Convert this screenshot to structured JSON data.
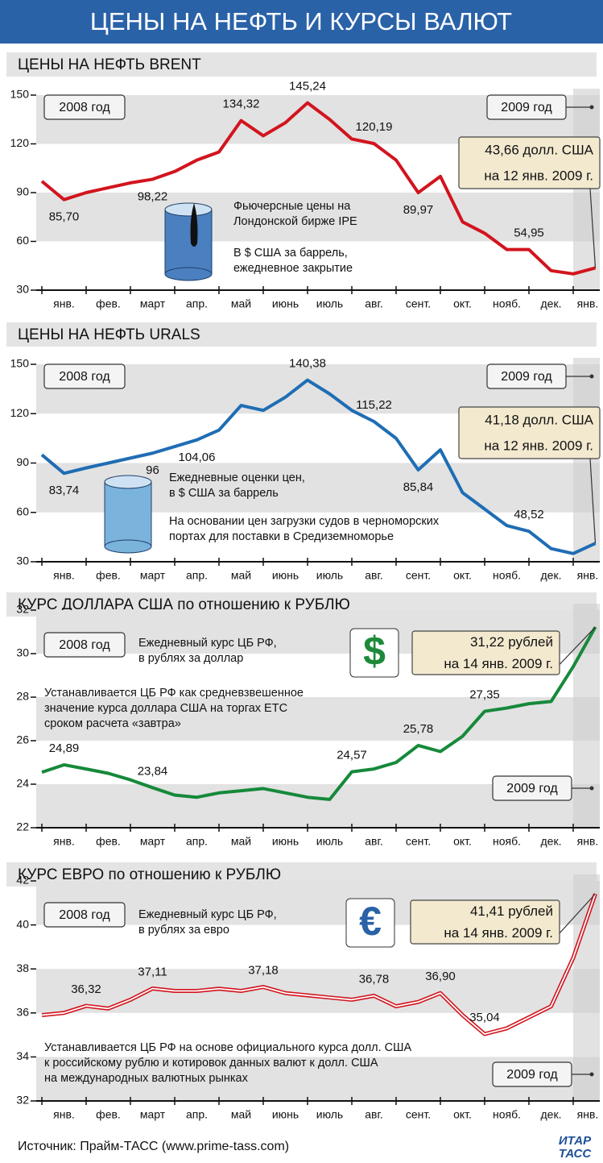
{
  "title": "ЦЕНЫ НА НЕФТЬ И КУРСЫ ВАЛЮТ",
  "source": "Источник: Прайм-ТАСС (www.prime-tass.com)",
  "logo": [
    "ИТАР",
    "ТАСС"
  ],
  "chart_data": [
    {
      "type": "line",
      "title": "ЦЕНЫ НА НЕФТЬ BRENT",
      "period_labels": [
        "2008 год",
        "2009 год"
      ],
      "notes": [
        [
          "Фьючерсные цены на",
          "Лондонской бирже IPE"
        ],
        [
          "В $ США за баррель,",
          "ежедневное закрытие"
        ]
      ],
      "categories": [
        null,
        "янв.",
        null,
        "фев.",
        null,
        "март",
        null,
        "апр.",
        null,
        "май",
        null,
        "июнь",
        null,
        "июль",
        null,
        "авг.",
        null,
        "сент.",
        null,
        "окт.",
        null,
        "нояб.",
        null,
        "дек.",
        null,
        "янв."
      ],
      "color": "#d2141e",
      "values": [
        97,
        85.7,
        90,
        93,
        96,
        98.22,
        103,
        110,
        115,
        134.32,
        125,
        133,
        145.24,
        135,
        123,
        120.19,
        110,
        89.97,
        100,
        72,
        65,
        55,
        54.95,
        42,
        40,
        43.66
      ],
      "value_labels": [
        null,
        "85,70",
        null,
        null,
        null,
        "98,22",
        null,
        null,
        null,
        "134,32",
        null,
        null,
        "145,24",
        null,
        null,
        "120,19",
        null,
        "89,97",
        null,
        null,
        null,
        null,
        "54,95",
        null,
        null,
        [
          "43,66 долл. США",
          "на 12 янв. 2009 г."
        ]
      ],
      "ylim": [
        30,
        150
      ],
      "yticks": [
        30,
        60,
        90,
        120,
        150
      ],
      "grid": true
    },
    {
      "type": "line",
      "title": "ЦЕНЫ НА НЕФТЬ URALS",
      "period_labels": [
        "2008 год",
        "2009 год"
      ],
      "notes": [
        [
          "Ежедневные оценки цен,",
          "в $ США за баррель"
        ],
        [
          "На основании цен загрузки судов в черноморских",
          "портах для поставки в Средиземноморье"
        ]
      ],
      "categories": [
        null,
        "янв.",
        null,
        "фев.",
        null,
        "март",
        null,
        "апр.",
        null,
        "май",
        null,
        "июнь",
        null,
        "июль",
        null,
        "авг.",
        null,
        "сент.",
        null,
        "окт.",
        null,
        "нояб.",
        null,
        "дек.",
        null,
        "янв."
      ],
      "color": "#1f6db4",
      "values": [
        95,
        83.74,
        87,
        90,
        93,
        96,
        100,
        104.06,
        110,
        125,
        122,
        130,
        140.38,
        132,
        122,
        115.22,
        105,
        85.84,
        98,
        72,
        62,
        52,
        48.52,
        38,
        35,
        41.18
      ],
      "value_labels": [
        null,
        "83,74",
        null,
        null,
        null,
        "96",
        null,
        "104,06",
        null,
        null,
        null,
        null,
        "140,38",
        null,
        null,
        "115,22",
        null,
        "85,84",
        null,
        null,
        null,
        null,
        "48,52",
        null,
        null,
        [
          "41,18 долл. США",
          "на 12 янв. 2009 г."
        ]
      ],
      "ylim": [
        30,
        150
      ],
      "yticks": [
        30,
        60,
        90,
        120,
        150
      ],
      "grid": true
    },
    {
      "type": "line",
      "title": "КУРС ДОЛЛАРА США по отношению к РУБЛЮ",
      "period_labels": [
        "2008 год",
        "2009 год"
      ],
      "notes": [
        [
          "Ежедневный курс ЦБ РФ,",
          "в рублях за доллар"
        ],
        [
          "Устанавливается ЦБ РФ как средневзвешенное",
          "значение курса доллара США на торгах ЕТС",
          "сроком расчета «завтра»"
        ]
      ],
      "categories": [
        null,
        "янв.",
        null,
        "фев.",
        null,
        "март",
        null,
        "апр.",
        null,
        "май",
        null,
        "июнь",
        null,
        "июль",
        null,
        "авг.",
        null,
        "сент.",
        null,
        "окт.",
        null,
        "нояб.",
        null,
        "дек.",
        null,
        "янв."
      ],
      "color": "#16893a",
      "values": [
        24.55,
        24.89,
        24.7,
        24.5,
        24.2,
        23.84,
        23.5,
        23.4,
        23.6,
        23.7,
        23.8,
        23.6,
        23.4,
        23.3,
        24.57,
        24.7,
        25.0,
        25.78,
        25.5,
        26.2,
        27.35,
        27.5,
        27.7,
        27.8,
        29.4,
        31.22
      ],
      "value_labels": [
        null,
        "24,89",
        null,
        null,
        null,
        "23,84",
        null,
        null,
        null,
        null,
        null,
        null,
        null,
        null,
        "24,57",
        null,
        null,
        "25,78",
        null,
        null,
        "27,35",
        null,
        null,
        null,
        null,
        [
          "31,22 рублей",
          "на 14 янв. 2009 г."
        ]
      ],
      "ylim": [
        22,
        32
      ],
      "yticks": [
        22,
        24,
        26,
        28,
        30,
        32
      ],
      "grid": true
    },
    {
      "type": "line",
      "title": "КУРС ЕВРО по отношению к РУБЛЮ",
      "period_labels": [
        "2008 год",
        "2009 год"
      ],
      "notes": [
        [
          "Ежедневный курс ЦБ РФ,",
          "в рублях за евро"
        ],
        [
          "Устанавливается ЦБ РФ на основе официального курса долл. США",
          "к российскому рублю и котировок данных валют к долл. США",
          "на международных валютных рынках"
        ]
      ],
      "categories": [
        null,
        "янв.",
        null,
        "фев.",
        null,
        "март",
        null,
        "апр.",
        null,
        "май",
        null,
        "июнь",
        null,
        "июль",
        null,
        "авг.",
        null,
        "сент.",
        null,
        "окт.",
        null,
        "нояб.",
        null,
        "дек.",
        null,
        "янв."
      ],
      "color": "#d2141e",
      "values": [
        35.9,
        36.0,
        36.32,
        36.2,
        36.6,
        37.11,
        37.0,
        37.0,
        37.1,
        37.0,
        37.18,
        36.9,
        36.8,
        36.7,
        36.6,
        36.78,
        36.3,
        36.5,
        36.9,
        35.9,
        35.04,
        35.3,
        35.8,
        36.3,
        38.5,
        41.41
      ],
      "value_labels": [
        null,
        null,
        "36,32",
        null,
        null,
        "37,11",
        null,
        null,
        null,
        null,
        "37,18",
        null,
        null,
        null,
        null,
        "36,78",
        null,
        null,
        "36,90",
        null,
        "35,04",
        null,
        null,
        null,
        null,
        [
          "41,41 рублей",
          "на 14 янв. 2009 г."
        ]
      ],
      "ylim": [
        32,
        42
      ],
      "yticks": [
        32,
        34,
        36,
        38,
        40,
        42
      ],
      "grid": true
    }
  ]
}
